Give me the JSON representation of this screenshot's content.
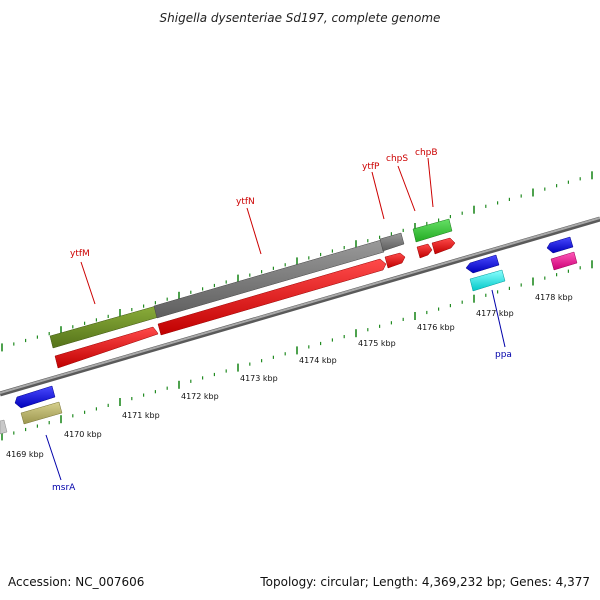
{
  "title": "Shigella dysenteriae Sd197, complete genome",
  "footer": {
    "accession": "Accession: NC_007606",
    "summary": "Topology: circular; Length: 4,369,232 bp; Genes: 4,377"
  },
  "kbp_labels": [
    "4169 kbp",
    "4170 kbp",
    "4171 kbp",
    "4172 kbp",
    "4173 kbp",
    "4174 kbp",
    "4175 kbp",
    "4176 kbp",
    "4177 kbp",
    "4178 kbp"
  ],
  "gene_labels": [
    {
      "name": "ytfM",
      "strand": "forward"
    },
    {
      "name": "ytfN",
      "strand": "forward"
    },
    {
      "name": "ytfP",
      "strand": "forward"
    },
    {
      "name": "chpS",
      "strand": "forward"
    },
    {
      "name": "chpB",
      "strand": "forward"
    },
    {
      "name": "ppa",
      "strand": "reverse"
    },
    {
      "name": "msrA",
      "strand": "reverse"
    }
  ],
  "colors": {
    "backbone": "#808080",
    "tick": "#228B22",
    "forward_label": "#cc0000",
    "reverse_label": "#0000aa",
    "cds_red": "#ee0000",
    "olive": "#6b8e23",
    "gray_feature": "#7a7a7a",
    "green_feature": "#33cc33",
    "blue_feature": "#1a1aee",
    "cyan_feature": "#00e5e5",
    "magenta_feature": "#ee1a9a",
    "khaki_feature": "#bdb76b"
  }
}
